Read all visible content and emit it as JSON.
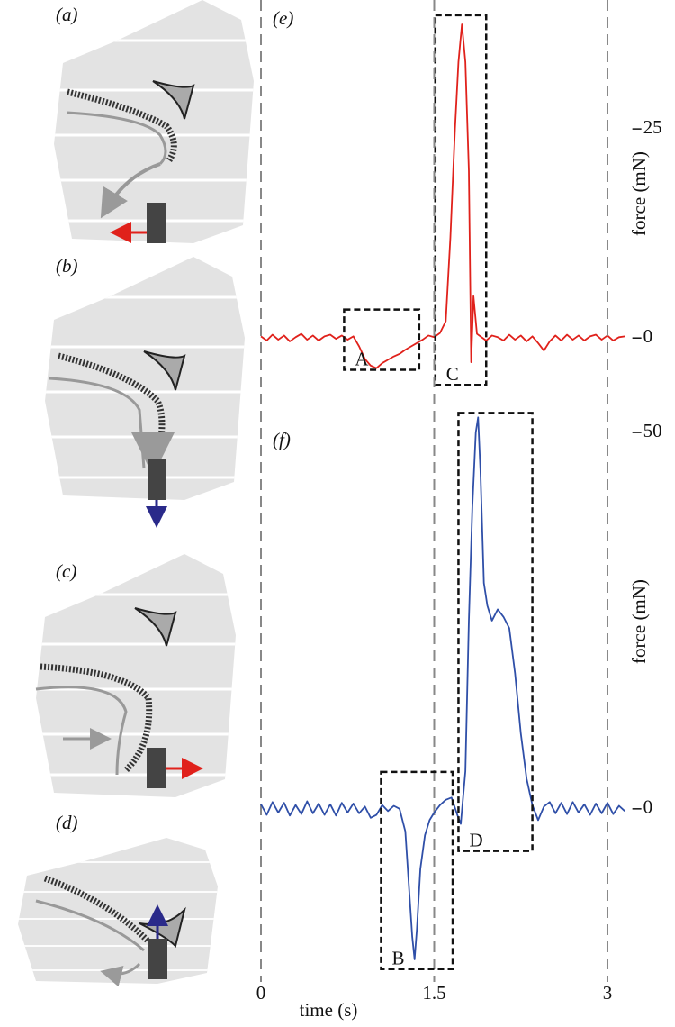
{
  "panels": {
    "a": "(a)",
    "b": "(b)",
    "c": "(c)",
    "d": "(d)"
  },
  "chart_data": [
    {
      "type": "line",
      "panel_label": "(e)",
      "y_label": "force (mN)",
      "x": [
        0,
        0.05,
        0.1,
        0.15,
        0.2,
        0.25,
        0.3,
        0.35,
        0.4,
        0.45,
        0.5,
        0.55,
        0.6,
        0.65,
        0.7,
        0.75,
        0.8,
        0.85,
        0.9,
        0.95,
        1,
        1.05,
        1.1,
        1.15,
        1.2,
        1.25,
        1.3,
        1.35,
        1.4,
        1.45,
        1.5,
        1.55,
        1.6,
        1.64,
        1.68,
        1.71,
        1.74,
        1.77,
        1.8,
        1.82,
        1.84,
        1.87,
        1.9,
        1.95,
        2,
        2.05,
        2.1,
        2.15,
        2.2,
        2.25,
        2.3,
        2.35,
        2.4,
        2.45,
        2.5,
        2.55,
        2.6,
        2.65,
        2.7,
        2.75,
        2.8,
        2.85,
        2.9,
        2.95,
        3,
        3.05,
        3.1,
        3.15
      ],
      "series": [
        {
          "color": "#e0211b",
          "values": [
            0.2,
            -0.3,
            0.4,
            -0.2,
            0.3,
            -0.4,
            0.1,
            0.5,
            -0.2,
            0.3,
            -0.3,
            0.2,
            0.4,
            -0.1,
            0.3,
            -0.2,
            0.2,
            -1,
            -2.5,
            -3.3,
            -3.6,
            -3.0,
            -2.6,
            -2.2,
            -1.9,
            -1.4,
            -1.0,
            -0.6,
            -0.2,
            0.3,
            0.1,
            0.6,
            2,
            12,
            25,
            33,
            37.5,
            33,
            20,
            -2.9,
            5,
            0.5,
            0.2,
            -0.3,
            0.3,
            0.1,
            -0.3,
            0.4,
            -0.2,
            0.3,
            -0.4,
            0.2,
            -0.6,
            -1.5,
            -0.4,
            0.3,
            -0.3,
            0.4,
            -0.2,
            0.3,
            -0.3,
            0.2,
            0.4,
            -0.2,
            0.3,
            -0.3,
            0.1,
            0.2
          ]
        }
      ],
      "xlim": [
        0,
        3.2
      ],
      "ylim": [
        -5.9,
        38.8
      ],
      "yticks": [
        0,
        25
      ],
      "annotations": [
        {
          "label": "A",
          "x": [
            0.72,
            1.37
          ],
          "y": [
            -3.8,
            3.4
          ]
        },
        {
          "label": "C",
          "x": [
            1.51,
            1.95
          ],
          "y": [
            -5.6,
            38.6
          ]
        }
      ]
    },
    {
      "type": "line",
      "panel_label": "(f)",
      "y_label": "force (mN)",
      "x_label": "time (s)",
      "x": [
        0,
        0.05,
        0.1,
        0.15,
        0.2,
        0.25,
        0.3,
        0.35,
        0.4,
        0.45,
        0.5,
        0.55,
        0.6,
        0.65,
        0.7,
        0.75,
        0.8,
        0.85,
        0.9,
        0.95,
        1,
        1.05,
        1.1,
        1.15,
        1.2,
        1.25,
        1.28,
        1.31,
        1.33,
        1.35,
        1.38,
        1.42,
        1.46,
        1.5,
        1.55,
        1.6,
        1.65,
        1.7,
        1.73,
        1.77,
        1.8,
        1.83,
        1.86,
        1.88,
        1.9,
        1.93,
        1.96,
        2,
        2.05,
        2.1,
        2.15,
        2.2,
        2.25,
        2.3,
        2.35,
        2.4,
        2.45,
        2.5,
        2.55,
        2.6,
        2.65,
        2.7,
        2.75,
        2.8,
        2.85,
        2.9,
        2.95,
        3,
        3.05,
        3.1,
        3.15
      ],
      "series": [
        {
          "color": "#2f4fa8",
          "values": [
            0.6,
            -0.8,
            0.9,
            -0.5,
            0.8,
            -0.9,
            0.5,
            -0.7,
            1,
            -0.6,
            0.7,
            -0.8,
            0.6,
            -0.9,
            0.8,
            -0.5,
            0.7,
            -0.6,
            0.3,
            -1.2,
            -0.8,
            0.5,
            -0.3,
            0.4,
            0,
            -3,
            -10,
            -17,
            -20,
            -16,
            -8,
            -3.5,
            -1.5,
            -0.5,
            0.5,
            1.2,
            1.5,
            -0.8,
            -2,
            5,
            25,
            40,
            50,
            52,
            45,
            30,
            27,
            25,
            26.5,
            25.5,
            24,
            18,
            10,
            4,
            0.5,
            -1.5,
            0.3,
            0.9,
            -0.6,
            0.8,
            -0.7,
            0.9,
            -0.5,
            0.6,
            -0.8,
            0.7,
            -0.6,
            0.8,
            -0.7,
            0.4,
            -0.3
          ]
        }
      ],
      "xlim": [
        0,
        3.2
      ],
      "xticks": [
        0,
        1.5,
        3
      ],
      "grid": true,
      "ylim": [
        -22.4,
        52.4
      ],
      "yticks": [
        0,
        50
      ],
      "annotations": [
        {
          "label": "B",
          "x": [
            1.04,
            1.66
          ],
          "y": [
            -21.3,
            4.9
          ]
        },
        {
          "label": "D",
          "x": [
            1.71,
            2.35
          ],
          "y": [
            -5.6,
            52.6
          ]
        }
      ]
    }
  ]
}
